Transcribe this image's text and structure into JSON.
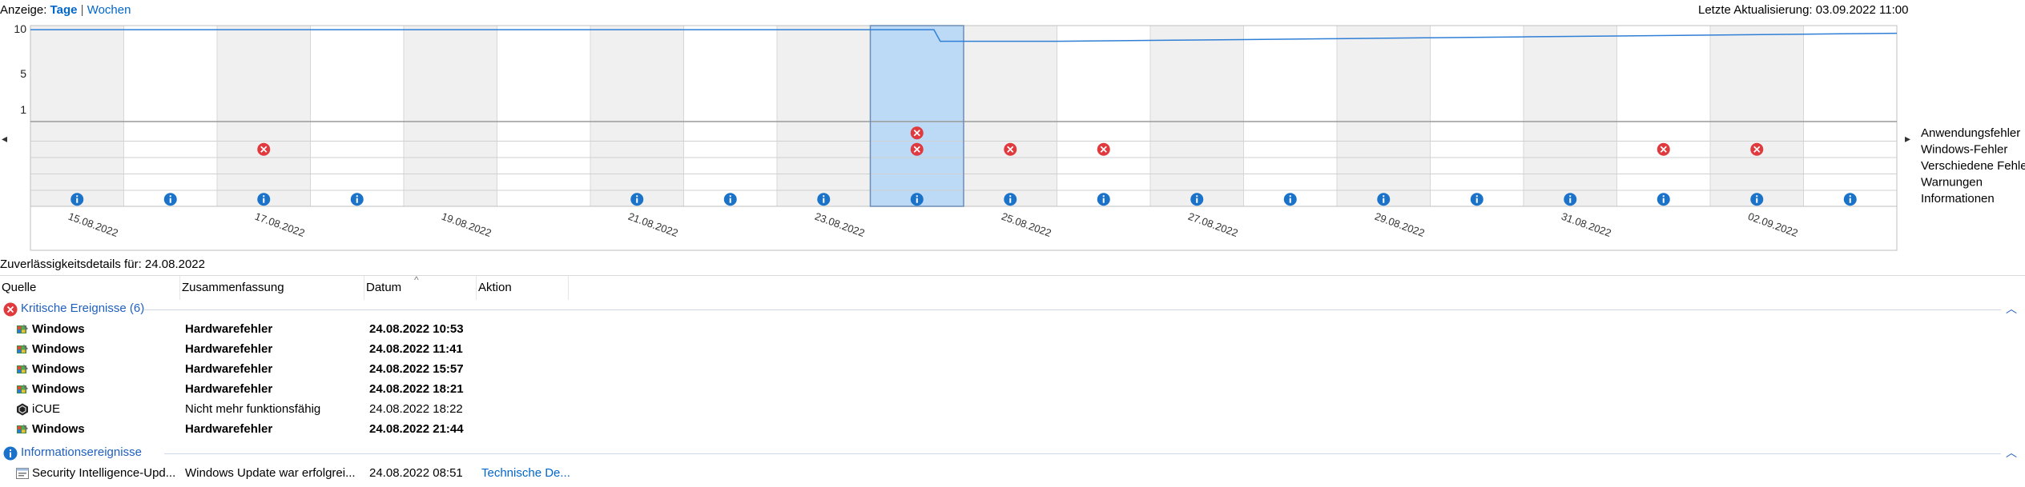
{
  "view": {
    "label": "Anzeige:",
    "days": "Tage",
    "sep": "|",
    "weeks": "Wochen"
  },
  "last_update": "Letzte Aktualisierung: 03.09.2022 11:00",
  "chart_data": {
    "type": "line",
    "y_ticks": [
      "10",
      "5",
      "1"
    ],
    "ylim": [
      0,
      10
    ],
    "columns": 20,
    "selected_index": 9,
    "stability_index": [
      9.9,
      9.9,
      9.9,
      9.9,
      9.9,
      9.9,
      9.9,
      9.9,
      9.9,
      9.9,
      8.6,
      8.7,
      8.8,
      8.9,
      9.0,
      9.1,
      9.2,
      9.3,
      9.4,
      9.5
    ],
    "stability_step_col": 9.75,
    "date_labels": [
      {
        "col": 0,
        "text": "15.08.2022"
      },
      {
        "col": 2,
        "text": "17.08.2022"
      },
      {
        "col": 4,
        "text": "19.08.2022"
      },
      {
        "col": 6,
        "text": "21.08.2022"
      },
      {
        "col": 8,
        "text": "23.08.2022"
      },
      {
        "col": 10,
        "text": "25.08.2022"
      },
      {
        "col": 12,
        "text": "27.08.2022"
      },
      {
        "col": 14,
        "text": "29.08.2022"
      },
      {
        "col": 16,
        "text": "31.08.2022"
      },
      {
        "col": 18,
        "text": "02.09.2022"
      }
    ],
    "legend": [
      "Anwendungsfehler",
      "Windows-Fehler",
      "Verschiedene Fehler",
      "Warnungen",
      "Informationen"
    ],
    "events": {
      "Anwendungsfehler": [
        9
      ],
      "Windows-Fehler": [
        2,
        9,
        10,
        11,
        17,
        18
      ],
      "Verschiedene Fehler": [],
      "Warnungen": [],
      "Informationen": [
        0,
        1,
        2,
        3,
        6,
        7,
        8,
        9,
        10,
        11,
        12,
        13,
        14,
        15,
        16,
        17,
        18,
        19
      ]
    },
    "nav_left": "◂",
    "nav_right": "▸"
  },
  "details_title": "Zuverlässigkeitsdetails für: 24.08.2022",
  "columns": {
    "source": "Quelle",
    "summary": "Zusammenfassung",
    "date": "Datum",
    "action": "Aktion",
    "sort_indicator": "^"
  },
  "critical_group": {
    "label": "Kritische Ereignisse (6)",
    "rows": [
      {
        "source": "Windows",
        "summary": "Hardwarefehler",
        "date": "24.08.2022 10:53",
        "action": "",
        "bold": true,
        "icon": "windows-icon"
      },
      {
        "source": "Windows",
        "summary": "Hardwarefehler",
        "date": "24.08.2022 11:41",
        "action": "",
        "bold": true,
        "icon": "windows-icon"
      },
      {
        "source": "Windows",
        "summary": "Hardwarefehler",
        "date": "24.08.2022 15:57",
        "action": "",
        "bold": true,
        "icon": "windows-icon"
      },
      {
        "source": "Windows",
        "summary": "Hardwarefehler",
        "date": "24.08.2022 18:21",
        "action": "",
        "bold": true,
        "icon": "windows-icon"
      },
      {
        "source": "iCUE",
        "summary": "Nicht mehr funktionsfähig",
        "date": "24.08.2022 18:22",
        "action": "",
        "bold": false,
        "icon": "icue-icon"
      },
      {
        "source": "Windows",
        "summary": "Hardwarefehler",
        "date": "24.08.2022 21:44",
        "action": "",
        "bold": true,
        "icon": "windows-icon"
      }
    ]
  },
  "info_group": {
    "label": "Informationsereignisse",
    "rows": [
      {
        "source": "Security Intelligence-Upd...",
        "summary": "Windows Update war erfolgrei...",
        "date": "24.08.2022 08:51",
        "action": "Technische De...",
        "bold": false,
        "icon": "update-icon"
      }
    ]
  },
  "colors": {
    "accent": "#0066cc",
    "error": "#e0393e",
    "info": "#1a73c9",
    "selected": "#bcdaf5",
    "band": "#f0f0f0"
  }
}
